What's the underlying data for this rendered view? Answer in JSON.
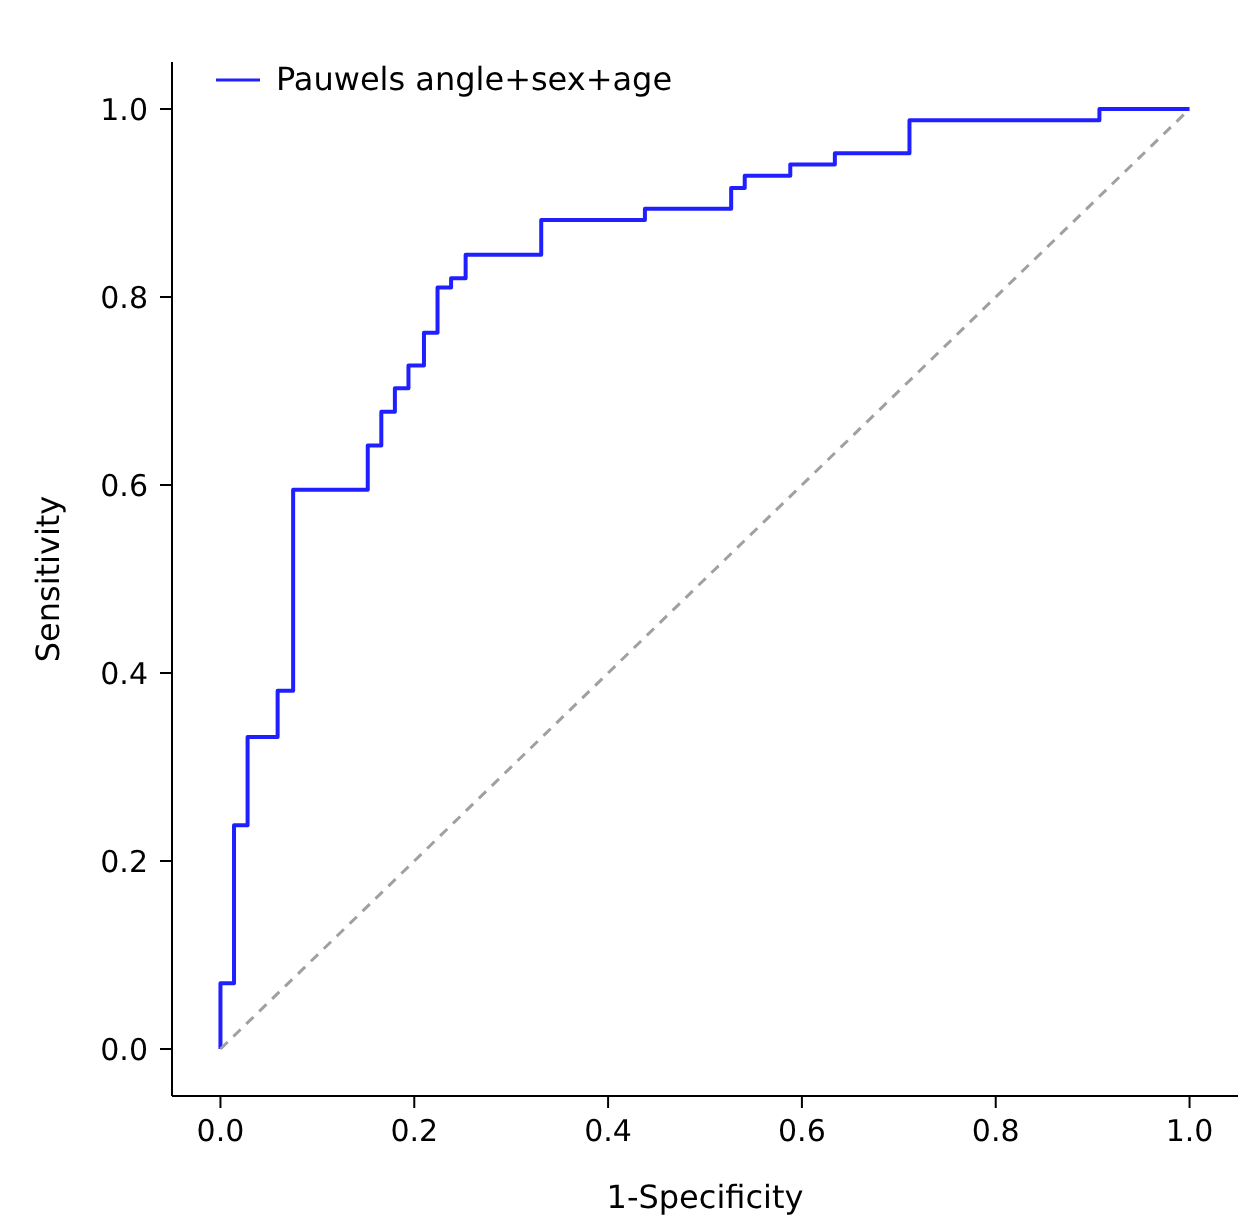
{
  "chart_data": {
    "type": "step",
    "xlabel": "1-Specificity",
    "ylabel": "Sensitivity",
    "xlim": [
      -0.05,
      1.05
    ],
    "ylim": [
      -0.05,
      1.05
    ],
    "xticks": [
      {
        "value": 0,
        "label": "0.0"
      },
      {
        "value": 0.2,
        "label": "0.2"
      },
      {
        "value": 0.4,
        "label": "0.4"
      },
      {
        "value": 0.6,
        "label": "0.6"
      },
      {
        "value": 0.8,
        "label": "0.8"
      },
      {
        "value": 1,
        "label": "1.0"
      }
    ],
    "yticks": [
      {
        "value": 0,
        "label": "0.0"
      },
      {
        "value": 0.2,
        "label": "0.2"
      },
      {
        "value": 0.4,
        "label": "0.4"
      },
      {
        "value": 0.6,
        "label": "0.6"
      },
      {
        "value": 0.8,
        "label": "0.8"
      },
      {
        "value": 1,
        "label": "1.0"
      }
    ],
    "grid": false,
    "legend": "top left",
    "marker": "none",
    "series": [
      {
        "name": "Pauwels angle+sex+age",
        "color": "#2020ff",
        "line_style": "solid",
        "x": [
          0,
          0,
          0.014,
          0.028,
          0.059,
          0.075,
          0.152,
          0.166,
          0.18,
          0.194,
          0.21,
          0.224,
          0.238,
          0.253,
          0.331,
          0.438,
          0.527,
          0.541,
          0.588,
          0.634,
          0.711,
          0.907,
          1.0
        ],
        "values": [
          0,
          0.07,
          0.238,
          0.332,
          0.381,
          0.595,
          0.642,
          0.678,
          0.703,
          0.727,
          0.762,
          0.81,
          0.82,
          0.845,
          0.882,
          0.894,
          0.916,
          0.929,
          0.941,
          0.953,
          0.988,
          1.0,
          1.0
        ]
      },
      {
        "type": "line",
        "color": "#a0a0a0",
        "line_style": "dashed",
        "x": [
          0,
          1
        ],
        "values": [
          0,
          1
        ]
      }
    ]
  }
}
